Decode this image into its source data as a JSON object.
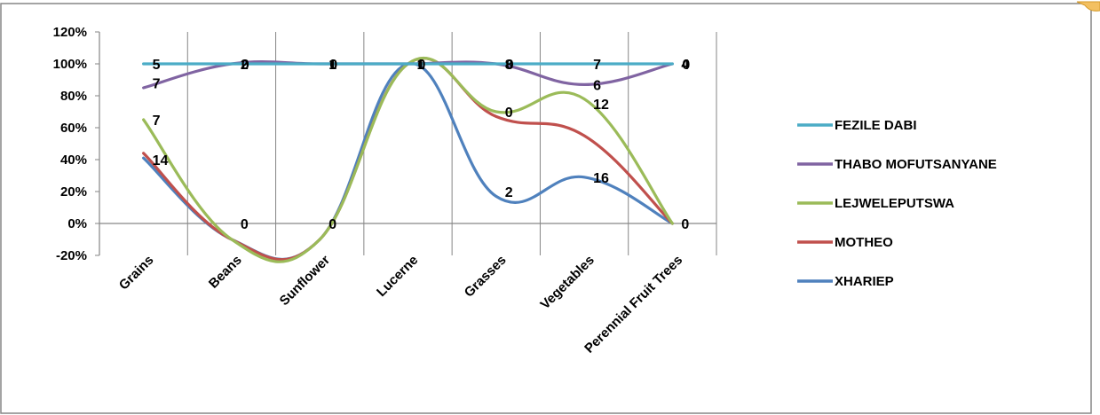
{
  "chart_data": {
    "type": "line",
    "smooth": true,
    "title": "",
    "xlabel": "",
    "ylabel": "",
    "ylim": [
      -0.2,
      1.2
    ],
    "y_ticks": [
      -0.2,
      0,
      0.2,
      0.4,
      0.6,
      0.8,
      1.0,
      1.2
    ],
    "y_tick_labels": [
      "-20%",
      "0%",
      "20%",
      "40%",
      "60%",
      "80%",
      "100%",
      "120%"
    ],
    "grid": "vertical-category",
    "legend": "right",
    "categories": [
      "Grains",
      "Beans",
      "Sunflower",
      "Lucerne",
      "Grasses",
      "Vegetables",
      "Perennial Fruit Trees"
    ],
    "series": [
      {
        "name": "FEZILE DABI",
        "color": "#4BACC6",
        "values": [
          1.0,
          1.0,
          1.0,
          1.0,
          1.0,
          1.0,
          1.0
        ]
      },
      {
        "name": "THABO MOFUTSANYANE",
        "color": "#8064A2",
        "values": [
          0.85,
          1.0,
          1.0,
          1.0,
          1.0,
          0.87,
          1.0
        ]
      },
      {
        "name": "LEJWELEPUTSWA",
        "color": "#9BBB59",
        "values": [
          0.65,
          -0.1,
          -0.1,
          1.0,
          0.7,
          0.78,
          0.0
        ]
      },
      {
        "name": "MOTHEO",
        "color": "#C0504D",
        "values": [
          0.44,
          -0.1,
          -0.1,
          1.0,
          0.67,
          0.55,
          0.0
        ]
      },
      {
        "name": "XHARIEP",
        "color": "#4F81BD",
        "values": [
          0.41,
          -0.1,
          -0.1,
          1.0,
          0.17,
          0.29,
          0.0
        ]
      }
    ],
    "data_labels": [
      {
        "text": "5",
        "x": 0,
        "y": 1.0
      },
      {
        "text": "7",
        "x": 0,
        "y": 0.88
      },
      {
        "text": "7",
        "x": 0,
        "y": 0.65
      },
      {
        "text": "14",
        "x": 0,
        "y": 0.4
      },
      {
        "text": "2",
        "x": 1,
        "y": 1.0
      },
      {
        "text": "0",
        "x": 1,
        "y": 1.0
      },
      {
        "text": "0",
        "x": 1,
        "y": 0.0
      },
      {
        "text": "1",
        "x": 2,
        "y": 1.0
      },
      {
        "text": "0",
        "x": 2,
        "y": 1.0
      },
      {
        "text": "0",
        "x": 2,
        "y": 0.0
      },
      {
        "text": "1",
        "x": 3,
        "y": 1.0
      },
      {
        "text": "0",
        "x": 3,
        "y": 1.0
      },
      {
        "text": "8",
        "x": 4,
        "y": 1.0
      },
      {
        "text": "0",
        "x": 4,
        "y": 1.0
      },
      {
        "text": "0",
        "x": 4,
        "y": 0.7
      },
      {
        "text": "2",
        "x": 4,
        "y": 0.2
      },
      {
        "text": "7",
        "x": 5,
        "y": 1.0
      },
      {
        "text": "6",
        "x": 5,
        "y": 0.87
      },
      {
        "text": "12",
        "x": 5,
        "y": 0.75
      },
      {
        "text": "16",
        "x": 5,
        "y": 0.29
      },
      {
        "text": "4",
        "x": 6,
        "y": 1.0
      },
      {
        "text": "0",
        "x": 6,
        "y": 1.0
      },
      {
        "text": "0",
        "x": 6,
        "y": 0.0
      }
    ]
  }
}
